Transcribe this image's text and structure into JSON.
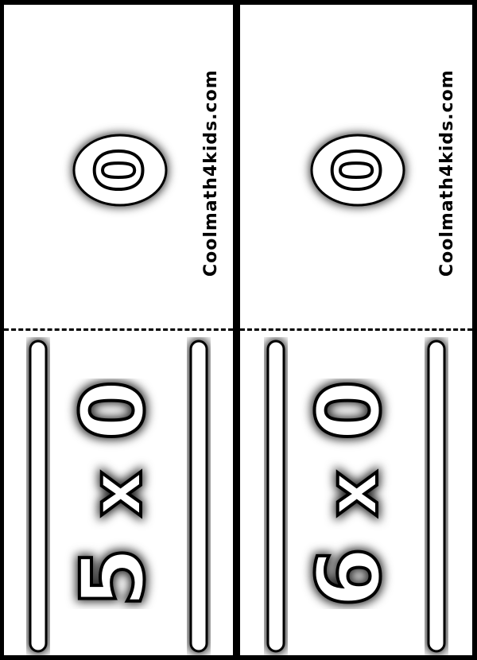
{
  "brand": "Coolmath4kids.com",
  "colors": {
    "ink": "#000000",
    "paper": "#ffffff",
    "border": "#000000"
  },
  "cards": [
    {
      "answer": "0",
      "problem": {
        "left": "5",
        "operator": "x",
        "right": "0"
      }
    },
    {
      "answer": "0",
      "problem": {
        "left": "6",
        "operator": "x",
        "right": "0"
      }
    }
  ]
}
